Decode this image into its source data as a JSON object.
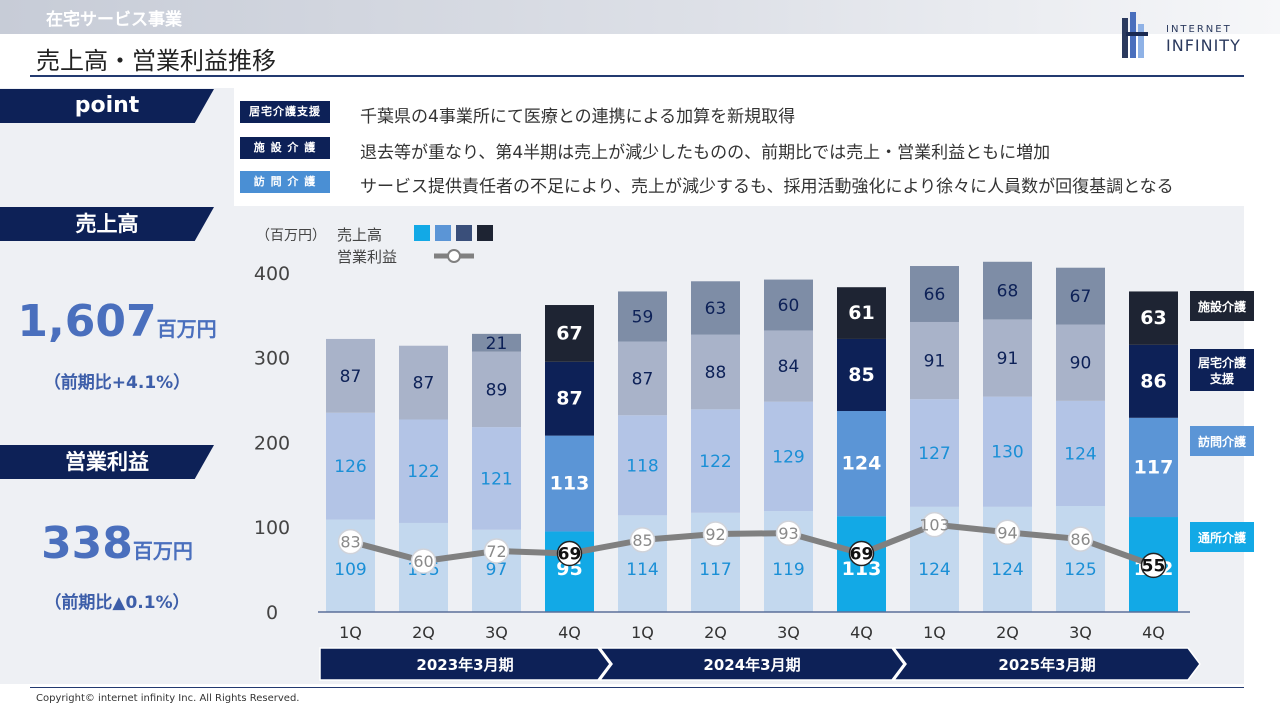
{
  "header": {
    "section": "在宅サービス事業",
    "title": "売上高・営業利益推移",
    "logo_line1": "INTERNET",
    "logo_line2": "INFINITY"
  },
  "summary": {
    "point_label": "point",
    "sales": {
      "label": "売上高",
      "value": "1,607",
      "unit": "百万円",
      "yoy": "（前期比+4.1%）"
    },
    "profit": {
      "label": "営業利益",
      "value": "338",
      "unit": "百万円",
      "yoy": "（前期比▲0.1%）"
    }
  },
  "notes": [
    {
      "tag": "居宅介護支援",
      "text": "千葉県の4事業所にて医療との連携による加算を新規取得",
      "color": "#0d2157"
    },
    {
      "tag": "施 設 介 護",
      "text": "退去等が重なり、第4半期は売上が減少したものの、前期比では売上・営業利益ともに増加",
      "color": "#0d2157"
    },
    {
      "tag": "訪 問 介 護",
      "text": "サービス提供責任者の不足により、売上が減少するも、採用活動強化により徐々に人員数が回復基調となる",
      "color": "#4a8fd4"
    }
  ],
  "chart_data": {
    "type": "bar",
    "unit_label": "（百万円）",
    "legend_sales": "売上高",
    "legend_profit": "営業利益",
    "ylim": [
      0,
      400
    ],
    "yticks": [
      0,
      100,
      200,
      300,
      400
    ],
    "categories": [
      "1Q",
      "2Q",
      "3Q",
      "4Q",
      "1Q",
      "2Q",
      "3Q",
      "4Q",
      "1Q",
      "2Q",
      "3Q",
      "4Q"
    ],
    "periods": [
      "2023年3月期",
      "2024年3月期",
      "2025年3月期"
    ],
    "highlight": [
      false,
      false,
      false,
      true,
      false,
      false,
      false,
      true,
      false,
      false,
      false,
      true
    ],
    "series": [
      {
        "name": "通所介護",
        "values": [
          109,
          105,
          97,
          95,
          114,
          117,
          119,
          113,
          124,
          124,
          125,
          112
        ],
        "color": "#c3d8ee",
        "color_hi": "#12a9e6",
        "text": "#1a8fd6",
        "text_hi": "#ffffff"
      },
      {
        "name": "訪問介護",
        "values": [
          126,
          122,
          121,
          113,
          118,
          122,
          129,
          124,
          127,
          130,
          124,
          117
        ],
        "color": "#b3c4e6",
        "color_hi": "#5b95d6",
        "text": "#1a8fd6",
        "text_hi": "#ffffff"
      },
      {
        "name": "居宅介護支援",
        "values": [
          87,
          87,
          89,
          87,
          87,
          88,
          84,
          85,
          91,
          91,
          90,
          86
        ],
        "color": "#a9b3c9",
        "color_hi": "#0d2157",
        "text": "#0d2157",
        "text_hi": "#ffffff"
      },
      {
        "name": "施設介護",
        "values": [
          0,
          0,
          21,
          67,
          59,
          63,
          60,
          61,
          66,
          68,
          67,
          63
        ],
        "color": "#7e8da6",
        "color_hi": "#1e2433",
        "text": "#0d2157",
        "text_hi": "#ffffff"
      }
    ],
    "profit": {
      "name": "営業利益",
      "values": [
        83,
        60,
        72,
        69,
        85,
        92,
        93,
        69,
        103,
        94,
        86,
        55
      ],
      "color": "#808080"
    },
    "side_labels": [
      {
        "label": "施設介護",
        "color": "#1e2433"
      },
      {
        "label": "居宅介護\n支援",
        "color": "#0d2157"
      },
      {
        "label": "訪問介護",
        "color": "#5b95d6"
      },
      {
        "label": "通所介護",
        "color": "#12a9e6"
      }
    ]
  },
  "copyright": "Copyright© internet infinity Inc. All Rights Reserved."
}
